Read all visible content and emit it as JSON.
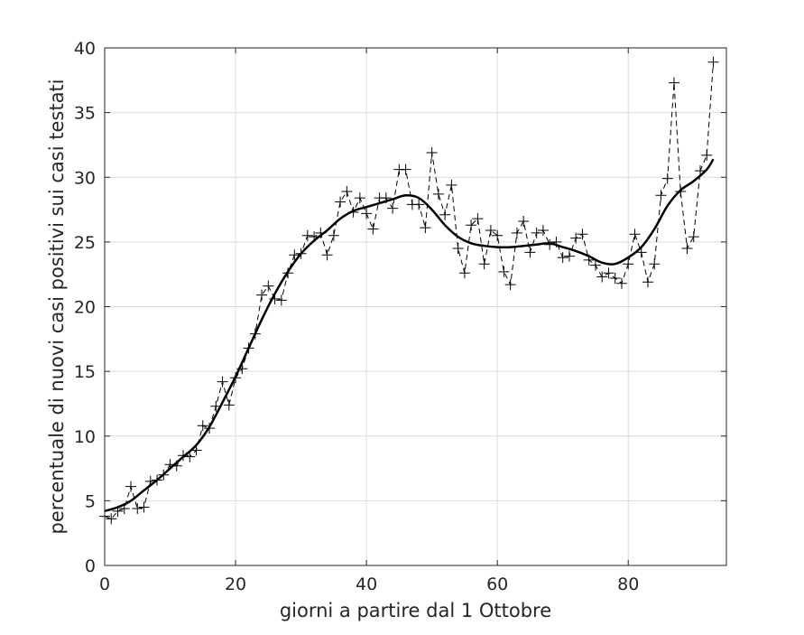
{
  "chart_data": {
    "type": "line",
    "xlabel": "giorni a partire dal 1 Ottobre",
    "ylabel": "percentuale di nuovi casi positivi sui casi testati",
    "xlim": [
      0,
      95
    ],
    "ylim": [
      0,
      40
    ],
    "x_ticks": [
      0,
      20,
      40,
      60,
      80
    ],
    "y_ticks": [
      0,
      5,
      10,
      15,
      20,
      25,
      30,
      35,
      40
    ],
    "grid": true,
    "colors": {
      "raw": "#000000",
      "smooth": "#000000",
      "grid": "#dcdcdc",
      "text": "#262626"
    },
    "series": [
      {
        "style": "dashed line with plus markers",
        "x": [
          0,
          1,
          2,
          3,
          4,
          5,
          6,
          7,
          8,
          9,
          10,
          11,
          12,
          13,
          14,
          15,
          16,
          17,
          18,
          19,
          20,
          21,
          22,
          23,
          24,
          25,
          26,
          27,
          28,
          29,
          30,
          31,
          32,
          33,
          34,
          35,
          36,
          37,
          38,
          39,
          40,
          41,
          42,
          43,
          44,
          45,
          46,
          47,
          48,
          49,
          50,
          51,
          52,
          53,
          54,
          55,
          56,
          57,
          58,
          59,
          60,
          61,
          62,
          63,
          64,
          65,
          66,
          67,
          68,
          69,
          70,
          71,
          72,
          73,
          74,
          75,
          76,
          77,
          78,
          79,
          80,
          81,
          82,
          83,
          84,
          85,
          86,
          87,
          88,
          89,
          90,
          91,
          92,
          93
        ],
        "y": [
          3.8,
          3.6,
          4.2,
          4.4,
          6.1,
          4.4,
          4.5,
          6.5,
          6.6,
          7.0,
          7.8,
          7.7,
          8.5,
          8.4,
          8.9,
          10.8,
          10.6,
          12.3,
          14.2,
          12.4,
          14.5,
          15.2,
          16.8,
          17.9,
          20.9,
          21.6,
          20.6,
          20.5,
          22.6,
          24.0,
          24.1,
          25.5,
          25.4,
          25.7,
          24.0,
          25.5,
          28.1,
          28.9,
          27.3,
          28.4,
          27.2,
          26.0,
          28.4,
          28.4,
          27.6,
          30.6,
          30.6,
          27.9,
          27.9,
          26.1,
          31.9,
          28.7,
          27.1,
          29.4,
          24.5,
          22.6,
          26.3,
          26.8,
          23.3,
          25.9,
          25.5,
          22.7,
          21.7,
          25.7,
          26.6,
          24.2,
          25.7,
          25.9,
          24.8,
          25.0,
          23.8,
          23.9,
          25.3,
          25.6,
          23.6,
          23.2,
          22.3,
          22.6,
          22.2,
          21.8,
          23.3,
          25.6,
          24.2,
          21.9,
          23.3,
          28.6,
          29.9,
          37.3,
          28.9,
          24.5,
          25.4,
          30.5,
          31.7,
          38.9
        ]
      },
      {
        "style": "smooth solid line",
        "x": [
          0,
          2,
          4,
          6,
          8,
          10,
          12,
          14,
          16,
          18,
          20,
          22,
          24,
          26,
          28,
          30,
          32,
          34,
          36,
          38,
          40,
          42,
          44,
          46,
          48,
          50,
          52,
          54,
          56,
          58,
          60,
          62,
          64,
          66,
          68,
          70,
          72,
          74,
          76,
          78,
          80,
          82,
          84,
          86,
          88,
          90,
          92,
          93
        ],
        "y": [
          4.2,
          4.5,
          5.0,
          5.8,
          6.6,
          7.5,
          8.4,
          9.3,
          10.7,
          12.6,
          14.6,
          16.8,
          19.0,
          21.0,
          22.7,
          24.1,
          25.1,
          25.9,
          26.8,
          27.4,
          27.7,
          28.0,
          28.3,
          28.6,
          28.4,
          27.5,
          26.3,
          25.4,
          24.9,
          24.7,
          24.6,
          24.6,
          24.7,
          24.8,
          24.9,
          24.6,
          24.3,
          23.9,
          23.4,
          23.3,
          23.8,
          24.6,
          26.0,
          27.8,
          29.0,
          29.7,
          30.6,
          31.4
        ]
      }
    ]
  }
}
